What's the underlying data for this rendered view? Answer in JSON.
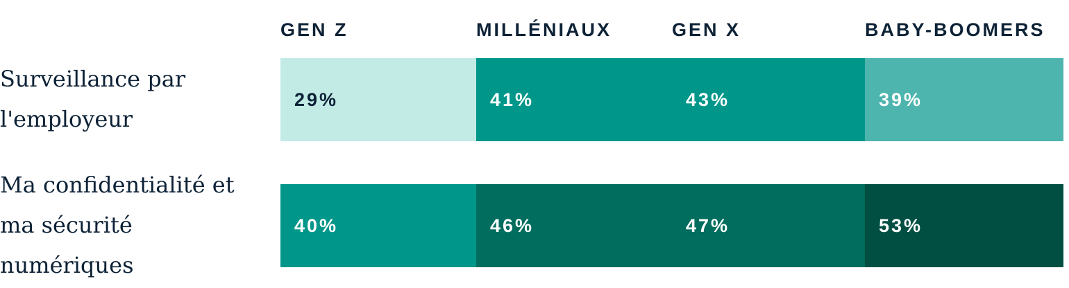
{
  "chart_data": {
    "type": "heatmap",
    "columns": [
      "GEN Z",
      "MILLÉNIAUX",
      "GEN X",
      "BABY-BOOMERS"
    ],
    "rows": [
      {
        "label": "Surveillance par l'employeur",
        "values": [
          29,
          41,
          43,
          39
        ],
        "display": [
          "29%",
          "41%",
          "43%",
          "39%"
        ]
      },
      {
        "label": "Ma confidentialité et ma sécurité numériques",
        "values": [
          40,
          46,
          47,
          53
        ],
        "display": [
          "40%",
          "46%",
          "47%",
          "53%"
        ]
      }
    ],
    "unit": "%",
    "colors": {
      "row0": [
        "#c3ebe6",
        "#00978a",
        "#00978a",
        "#4db5ad"
      ],
      "row1": [
        "#00978a",
        "#006d5e",
        "#006d5e",
        "#004f42"
      ],
      "text_dark": "#0d2236",
      "text_light": "#ffffff"
    }
  }
}
